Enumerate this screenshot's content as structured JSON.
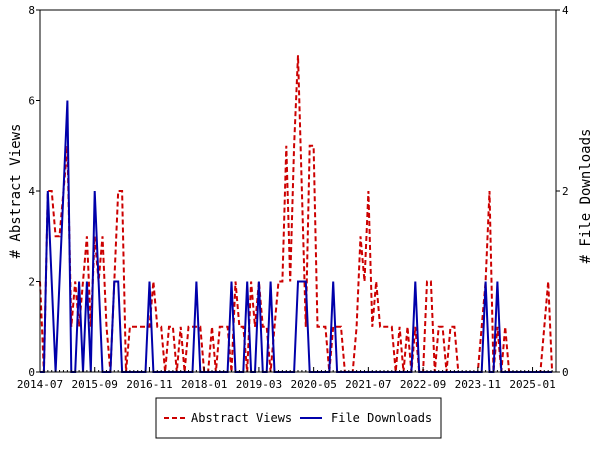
{
  "chart_data": {
    "type": "line",
    "ylabel": "# Abstract Views",
    "y2label": "# File Downloads",
    "x_ticks": [
      "2014-07",
      "2015-09",
      "2016-11",
      "2018-01",
      "2019-03",
      "2020-05",
      "2021-07",
      "2022-09",
      "2023-11",
      "2025-01"
    ],
    "x_range": [
      "2014-07",
      "2025-07"
    ],
    "y_ticks": [
      0,
      2,
      4,
      6,
      8
    ],
    "y2_ticks": [
      0,
      2,
      4
    ],
    "ylim": [
      0,
      8
    ],
    "y2lim": [
      0,
      4
    ],
    "grid": false,
    "legend": "bottom-center",
    "series": [
      {
        "name": "Abstract Views",
        "axis": "left",
        "color": "#cc0000",
        "style": "dashed",
        "points": [
          [
            "2014-07",
            2
          ],
          [
            "2014-08",
            0
          ],
          [
            "2014-09",
            4
          ],
          [
            "2014-10",
            4
          ],
          [
            "2014-11",
            3
          ],
          [
            "2014-12",
            3
          ],
          [
            "2015-01",
            4
          ],
          [
            "2015-02",
            5
          ],
          [
            "2015-03",
            1
          ],
          [
            "2015-04",
            2
          ],
          [
            "2015-05",
            1
          ],
          [
            "2015-06",
            2
          ],
          [
            "2015-07",
            3
          ],
          [
            "2015-08",
            1
          ],
          [
            "2015-09",
            3
          ],
          [
            "2015-10",
            2
          ],
          [
            "2015-11",
            3
          ],
          [
            "2015-12",
            1
          ],
          [
            "2016-01",
            0
          ],
          [
            "2016-02",
            2
          ],
          [
            "2016-03",
            4
          ],
          [
            "2016-04",
            4
          ],
          [
            "2016-05",
            0
          ],
          [
            "2016-06",
            1
          ],
          [
            "2016-07",
            1
          ],
          [
            "2016-08",
            1
          ],
          [
            "2016-09",
            1
          ],
          [
            "2016-10",
            1
          ],
          [
            "2016-11",
            1
          ],
          [
            "2016-12",
            2
          ],
          [
            "2017-01",
            1
          ],
          [
            "2017-02",
            1
          ],
          [
            "2017-03",
            0
          ],
          [
            "2017-04",
            1
          ],
          [
            "2017-05",
            1
          ],
          [
            "2017-06",
            0
          ],
          [
            "2017-07",
            1
          ],
          [
            "2017-08",
            0
          ],
          [
            "2017-09",
            1
          ],
          [
            "2017-10",
            1
          ],
          [
            "2017-11",
            1
          ],
          [
            "2017-12",
            1
          ],
          [
            "2018-01",
            0
          ],
          [
            "2018-02",
            0
          ],
          [
            "2018-03",
            1
          ],
          [
            "2018-04",
            0
          ],
          [
            "2018-05",
            1
          ],
          [
            "2018-06",
            1
          ],
          [
            "2018-07",
            1
          ],
          [
            "2018-08",
            0
          ],
          [
            "2018-09",
            2
          ],
          [
            "2018-10",
            1
          ],
          [
            "2018-11",
            1
          ],
          [
            "2018-12",
            0
          ],
          [
            "2019-01",
            2
          ],
          [
            "2019-02",
            1
          ],
          [
            "2019-03",
            2
          ],
          [
            "2019-04",
            1
          ],
          [
            "2019-05",
            1
          ],
          [
            "2019-06",
            0
          ],
          [
            "2019-07",
            1
          ],
          [
            "2019-08",
            2
          ],
          [
            "2019-09",
            2
          ],
          [
            "2019-10",
            5
          ],
          [
            "2019-11",
            2
          ],
          [
            "2019-12",
            5
          ],
          [
            "2020-01",
            7
          ],
          [
            "2020-02",
            4
          ],
          [
            "2020-03",
            1
          ],
          [
            "2020-04",
            5
          ],
          [
            "2020-05",
            5
          ],
          [
            "2020-06",
            1
          ],
          [
            "2020-07",
            1
          ],
          [
            "2020-08",
            1
          ],
          [
            "2020-09",
            0
          ],
          [
            "2020-10",
            1
          ],
          [
            "2020-11",
            1
          ],
          [
            "2020-12",
            1
          ],
          [
            "2021-01",
            0
          ],
          [
            "2021-02",
            0
          ],
          [
            "2021-03",
            0
          ],
          [
            "2021-04",
            1
          ],
          [
            "2021-05",
            3
          ],
          [
            "2021-06",
            2
          ],
          [
            "2021-07",
            4
          ],
          [
            "2021-08",
            1
          ],
          [
            "2021-09",
            2
          ],
          [
            "2021-10",
            1
          ],
          [
            "2021-11",
            1
          ],
          [
            "2021-12",
            1
          ],
          [
            "2022-01",
            1
          ],
          [
            "2022-02",
            0
          ],
          [
            "2022-03",
            1
          ],
          [
            "2022-04",
            0
          ],
          [
            "2022-05",
            1
          ],
          [
            "2022-06",
            0
          ],
          [
            "2022-07",
            1
          ],
          [
            "2022-08",
            0
          ],
          [
            "2022-09",
            0
          ],
          [
            "2022-10",
            2
          ],
          [
            "2022-11",
            2
          ],
          [
            "2022-12",
            0
          ],
          [
            "2023-01",
            1
          ],
          [
            "2023-02",
            1
          ],
          [
            "2023-03",
            0
          ],
          [
            "2023-04",
            1
          ],
          [
            "2023-05",
            1
          ],
          [
            "2023-06",
            0
          ],
          [
            "2023-07",
            0
          ],
          [
            "2023-08",
            0
          ],
          [
            "2023-09",
            0
          ],
          [
            "2023-10",
            0
          ],
          [
            "2023-11",
            0
          ],
          [
            "2023-12",
            1
          ],
          [
            "2024-01",
            2
          ],
          [
            "2024-02",
            4
          ],
          [
            "2024-03",
            0
          ],
          [
            "2024-04",
            1
          ],
          [
            "2024-05",
            0
          ],
          [
            "2024-06",
            1
          ],
          [
            "2024-07",
            0
          ],
          [
            "2024-08",
            0
          ],
          [
            "2024-09",
            0
          ],
          [
            "2024-10",
            0
          ],
          [
            "2024-11",
            0
          ],
          [
            "2024-12",
            0
          ],
          [
            "2025-01",
            0
          ],
          [
            "2025-02",
            0
          ],
          [
            "2025-03",
            0
          ],
          [
            "2025-04",
            1
          ],
          [
            "2025-05",
            2
          ],
          [
            "2025-06",
            0
          ]
        ]
      },
      {
        "name": "File Downloads",
        "axis": "right",
        "color": "#0000aa",
        "style": "solid",
        "points": [
          [
            "2014-07",
            0
          ],
          [
            "2014-08",
            0
          ],
          [
            "2014-09",
            2
          ],
          [
            "2014-10",
            1
          ],
          [
            "2014-11",
            0
          ],
          [
            "2014-12",
            1
          ],
          [
            "2015-01",
            2
          ],
          [
            "2015-02",
            3
          ],
          [
            "2015-03",
            0
          ],
          [
            "2015-04",
            0
          ],
          [
            "2015-05",
            1
          ],
          [
            "2015-06",
            0
          ],
          [
            "2015-07",
            1
          ],
          [
            "2015-08",
            0
          ],
          [
            "2015-09",
            2
          ],
          [
            "2015-10",
            1
          ],
          [
            "2015-11",
            0
          ],
          [
            "2015-12",
            0
          ],
          [
            "2016-01",
            0
          ],
          [
            "2016-02",
            1
          ],
          [
            "2016-03",
            1
          ],
          [
            "2016-04",
            0
          ],
          [
            "2016-05",
            0
          ],
          [
            "2016-06",
            0
          ],
          [
            "2016-07",
            0
          ],
          [
            "2016-08",
            0
          ],
          [
            "2016-09",
            0
          ],
          [
            "2016-10",
            0
          ],
          [
            "2016-11",
            1
          ],
          [
            "2016-12",
            0
          ],
          [
            "2017-01",
            0
          ],
          [
            "2017-02",
            0
          ],
          [
            "2017-03",
            0
          ],
          [
            "2017-04",
            0
          ],
          [
            "2017-05",
            0
          ],
          [
            "2017-06",
            0
          ],
          [
            "2017-07",
            0
          ],
          [
            "2017-08",
            0
          ],
          [
            "2017-09",
            0
          ],
          [
            "2017-10",
            0
          ],
          [
            "2017-11",
            1
          ],
          [
            "2017-12",
            0
          ],
          [
            "2018-01",
            0
          ],
          [
            "2018-02",
            0
          ],
          [
            "2018-03",
            0
          ],
          [
            "2018-04",
            0
          ],
          [
            "2018-05",
            0
          ],
          [
            "2018-06",
            0
          ],
          [
            "2018-07",
            0
          ],
          [
            "2018-08",
            1
          ],
          [
            "2018-09",
            0
          ],
          [
            "2018-10",
            0
          ],
          [
            "2018-11",
            0
          ],
          [
            "2018-12",
            1
          ],
          [
            "2019-01",
            0
          ],
          [
            "2019-02",
            0
          ],
          [
            "2019-03",
            1
          ],
          [
            "2019-04",
            0
          ],
          [
            "2019-05",
            0
          ],
          [
            "2019-06",
            1
          ],
          [
            "2019-07",
            0
          ],
          [
            "2019-08",
            0
          ],
          [
            "2019-09",
            0
          ],
          [
            "2019-10",
            0
          ],
          [
            "2019-11",
            0
          ],
          [
            "2019-12",
            0
          ],
          [
            "2020-01",
            1
          ],
          [
            "2020-02",
            1
          ],
          [
            "2020-03",
            1
          ],
          [
            "2020-04",
            0
          ],
          [
            "2020-05",
            0
          ],
          [
            "2020-06",
            0
          ],
          [
            "2020-07",
            0
          ],
          [
            "2020-08",
            0
          ],
          [
            "2020-09",
            0
          ],
          [
            "2020-10",
            1
          ],
          [
            "2020-11",
            0
          ],
          [
            "2020-12",
            0
          ],
          [
            "2021-01",
            0
          ],
          [
            "2021-02",
            0
          ],
          [
            "2021-03",
            0
          ],
          [
            "2021-04",
            0
          ],
          [
            "2021-05",
            0
          ],
          [
            "2021-06",
            0
          ],
          [
            "2021-07",
            0
          ],
          [
            "2021-08",
            0
          ],
          [
            "2021-09",
            0
          ],
          [
            "2021-10",
            0
          ],
          [
            "2021-11",
            0
          ],
          [
            "2021-12",
            0
          ],
          [
            "2022-01",
            0
          ],
          [
            "2022-02",
            0
          ],
          [
            "2022-03",
            0
          ],
          [
            "2022-04",
            0
          ],
          [
            "2022-05",
            0
          ],
          [
            "2022-06",
            0
          ],
          [
            "2022-07",
            1
          ],
          [
            "2022-08",
            0
          ],
          [
            "2022-09",
            0
          ],
          [
            "2022-10",
            0
          ],
          [
            "2022-11",
            0
          ],
          [
            "2022-12",
            0
          ],
          [
            "2023-01",
            0
          ],
          [
            "2023-02",
            0
          ],
          [
            "2023-03",
            0
          ],
          [
            "2023-04",
            0
          ],
          [
            "2023-05",
            0
          ],
          [
            "2023-06",
            0
          ],
          [
            "2023-07",
            0
          ],
          [
            "2023-08",
            0
          ],
          [
            "2023-09",
            0
          ],
          [
            "2023-10",
            0
          ],
          [
            "2023-11",
            0
          ],
          [
            "2023-12",
            0
          ],
          [
            "2024-01",
            1
          ],
          [
            "2024-02",
            0
          ],
          [
            "2024-03",
            0
          ],
          [
            "2024-04",
            1
          ],
          [
            "2024-05",
            0
          ],
          [
            "2024-06",
            0
          ],
          [
            "2024-07",
            0
          ],
          [
            "2024-08",
            0
          ],
          [
            "2024-09",
            0
          ],
          [
            "2024-10",
            0
          ],
          [
            "2024-11",
            0
          ],
          [
            "2024-12",
            0
          ],
          [
            "2025-01",
            0
          ],
          [
            "2025-02",
            0
          ],
          [
            "2025-03",
            0
          ],
          [
            "2025-04",
            0
          ],
          [
            "2025-05",
            0
          ],
          [
            "2025-06",
            0
          ]
        ]
      }
    ]
  }
}
